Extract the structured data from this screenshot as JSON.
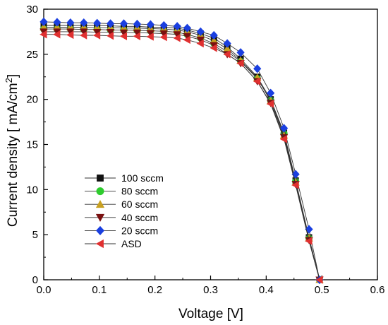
{
  "chart_data": {
    "type": "line",
    "xlabel": "Voltage [V]",
    "ylabel": "Current density [ mA/cm2]",
    "ylabel_main": "Current density [ mA/cm",
    "ylabel_sup": "2",
    "ylabel_end": "]",
    "xlim": [
      0.0,
      0.6
    ],
    "ylim": [
      0,
      30
    ],
    "x_ticks": [
      0.0,
      0.1,
      0.2,
      0.3,
      0.4,
      0.5,
      0.6
    ],
    "x_tick_labels": [
      "0.0",
      "0.1",
      "0.2",
      "0.3",
      "0.4",
      "0.5",
      "0.6"
    ],
    "y_ticks": [
      0,
      5,
      10,
      15,
      20,
      25,
      30
    ],
    "y_tick_labels": [
      "0",
      "5",
      "10",
      "15",
      "20",
      "25",
      "30"
    ],
    "grid": false,
    "legend_position": "bottom-left",
    "x": [
      0.0,
      0.024,
      0.048,
      0.072,
      0.096,
      0.12,
      0.144,
      0.168,
      0.192,
      0.216,
      0.24,
      0.258,
      0.282,
      0.306,
      0.33,
      0.354,
      0.384,
      0.408,
      0.432,
      0.453,
      0.477,
      0.496
    ],
    "series": [
      {
        "name": "100 sccm",
        "marker": "square",
        "color": "#111111",
        "values": [
          28.2,
          28.2,
          28.2,
          28.2,
          28.2,
          28.15,
          28.1,
          28.1,
          28.0,
          28.0,
          27.9,
          27.7,
          27.3,
          26.8,
          25.8,
          24.5,
          22.5,
          20.0,
          16.3,
          11.0,
          4.7,
          0.0
        ]
      },
      {
        "name": "80 sccm",
        "marker": "circle",
        "color": "#2ecc2e",
        "values": [
          27.8,
          27.8,
          27.8,
          27.75,
          27.75,
          27.7,
          27.7,
          27.65,
          27.6,
          27.55,
          27.45,
          27.2,
          26.8,
          26.2,
          25.3,
          24.2,
          22.3,
          19.9,
          16.2,
          10.9,
          4.6,
          0.0
        ]
      },
      {
        "name": "60 sccm",
        "marker": "triangle-up",
        "color": "#c8a020",
        "values": [
          28.0,
          28.0,
          28.0,
          28.0,
          27.95,
          27.95,
          27.9,
          27.9,
          27.85,
          27.8,
          27.7,
          27.5,
          27.1,
          26.5,
          25.6,
          24.3,
          22.4,
          19.8,
          16.0,
          10.8,
          4.6,
          0.0
        ]
      },
      {
        "name": "40 sccm",
        "marker": "triangle-down",
        "color": "#7a1010",
        "values": [
          27.5,
          27.5,
          27.5,
          27.5,
          27.45,
          27.45,
          27.4,
          27.4,
          27.35,
          27.3,
          27.2,
          27.0,
          26.6,
          26.0,
          25.0,
          24.0,
          22.0,
          19.6,
          15.8,
          10.6,
          4.4,
          0.0
        ]
      },
      {
        "name": "20 sccm",
        "marker": "diamond",
        "color": "#1a3fe0",
        "values": [
          28.6,
          28.55,
          28.5,
          28.5,
          28.45,
          28.4,
          28.4,
          28.35,
          28.3,
          28.2,
          28.1,
          27.9,
          27.5,
          27.1,
          26.2,
          25.2,
          23.4,
          20.7,
          16.8,
          11.7,
          5.6,
          0.0
        ]
      },
      {
        "name": "ASD",
        "marker": "triangle-left",
        "color": "#e03030",
        "values": [
          27.2,
          27.2,
          27.15,
          27.1,
          27.1,
          27.05,
          27.0,
          27.0,
          26.95,
          26.9,
          26.8,
          26.6,
          26.2,
          25.7,
          25.0,
          24.0,
          22.0,
          19.5,
          15.6,
          10.5,
          4.3,
          0.0
        ]
      }
    ]
  }
}
